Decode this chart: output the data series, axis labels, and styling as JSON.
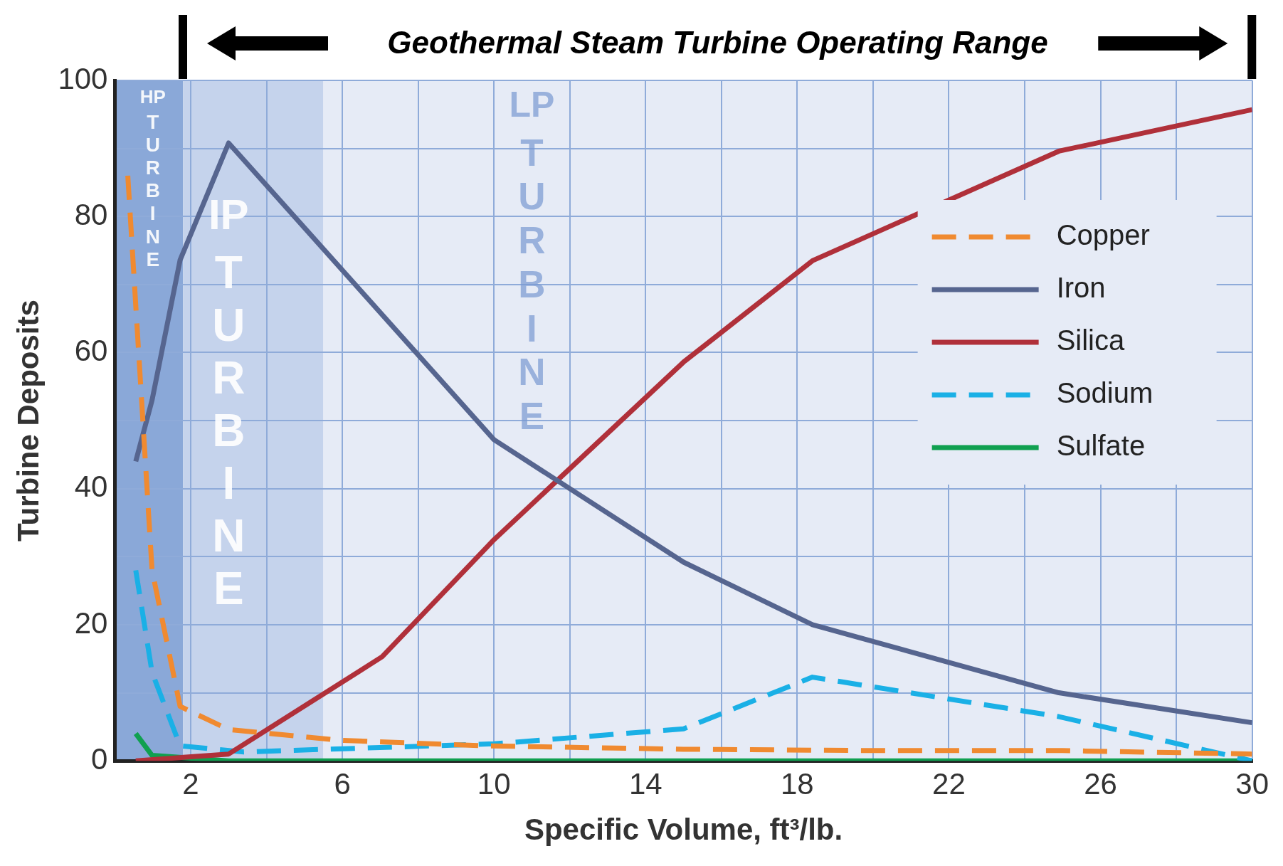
{
  "chart_data": {
    "type": "line",
    "xlabel": "Specific Volume, ft³/lb.",
    "ylabel": "Turbine Deposits",
    "annotations": [
      "Geothermal Steam Turbine Operating Range"
    ],
    "xlim": [
      0,
      30
    ],
    "ylim": [
      0,
      100
    ],
    "xticks": [
      {
        "value": 0,
        "label": null
      },
      2,
      {
        "value": 4,
        "label": null
      },
      6,
      {
        "value": 8,
        "label": null
      },
      10,
      {
        "value": 12,
        "label": null
      },
      14,
      {
        "value": 16,
        "label": null
      },
      18,
      {
        "value": 20,
        "label": null
      },
      22,
      {
        "value": 24,
        "label": null
      },
      26,
      {
        "value": 28,
        "label": null
      },
      30
    ],
    "yticks": [
      0,
      {
        "value": 10,
        "label": null
      },
      20,
      {
        "value": 30,
        "label": null
      },
      40,
      {
        "value": 50,
        "label": null
      },
      60,
      {
        "value": 70,
        "label": null
      },
      80,
      {
        "value": 90,
        "label": null
      },
      100
    ],
    "grid": true,
    "legend": "right",
    "marker": "none",
    "bands": [
      {
        "axis": "x",
        "from": 0,
        "to": 1.8,
        "label": "HP TURBINE",
        "color": "#8aa8d8"
      },
      {
        "axis": "x",
        "from": 1.8,
        "to": 5.5,
        "label": "IP TURBINE",
        "color": "#c5d3ec"
      },
      {
        "axis": "x",
        "from": 5.5,
        "to": 30,
        "label": "LP TURBINE",
        "color": "#e6ebf6"
      }
    ],
    "series": [
      {
        "name": "Copper",
        "color": "#f08a30",
        "line_style": "dashed",
        "x": [
          0.34,
          0.98,
          1.72,
          3,
          6,
          9.8,
          15,
          20,
          25,
          30
        ],
        "values": [
          86,
          28,
          8,
          4.6,
          3,
          2.2,
          1.7,
          1.5,
          1.5,
          1
        ]
      },
      {
        "name": "Iron",
        "color": "#56658f",
        "line_style": "solid",
        "x": [
          0.55,
          0.98,
          1.72,
          3,
          10,
          15,
          18.4,
          24.9,
          30
        ],
        "values": [
          44,
          53,
          73.6,
          90.8,
          47.2,
          29.2,
          20,
          10,
          5.6
        ]
      },
      {
        "name": "Silica",
        "color": "#b0303a",
        "line_style": "solid",
        "x": [
          0.55,
          3,
          7.05,
          10,
          15,
          18.4,
          24.9,
          30
        ],
        "values": [
          0,
          1,
          15.3,
          32.5,
          58.6,
          73.5,
          89.6,
          95.7
        ]
      },
      {
        "name": "Sodium",
        "color": "#1ab0e6",
        "line_style": "dashed",
        "x": [
          0.55,
          0.98,
          1.72,
          3.4,
          10,
          15,
          18.4,
          24.9,
          30
        ],
        "values": [
          28,
          13,
          2.2,
          1.3,
          2.5,
          4.7,
          12.3,
          6.5,
          0
        ]
      },
      {
        "name": "Sulfate",
        "color": "#10a050",
        "line_style": "solid",
        "x": [
          0.55,
          0.98,
          3,
          10,
          20,
          30
        ],
        "values": [
          4,
          0.8,
          0,
          0,
          0,
          0
        ]
      }
    ]
  }
}
